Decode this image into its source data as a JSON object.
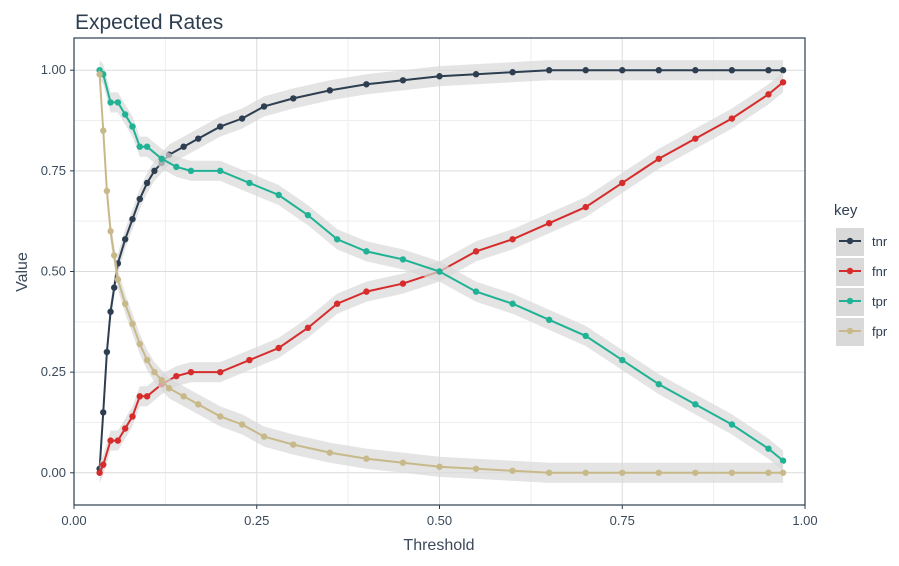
{
  "chart_data": {
    "type": "scatter",
    "title": "Expected Rates",
    "xlabel": "Threshold",
    "ylabel": "Value",
    "xlim": [
      0,
      1
    ],
    "ylim": [
      -0.08,
      1.08
    ],
    "x_ticks": [
      0.0,
      0.25,
      0.5,
      0.75,
      1.0
    ],
    "x_tick_labels": [
      "0.00",
      "0.25",
      "0.50",
      "0.75",
      "1.00"
    ],
    "y_ticks": [
      0.0,
      0.25,
      0.5,
      0.75,
      1.0
    ],
    "y_tick_labels": [
      "0.00",
      "0.25",
      "0.50",
      "0.75",
      "1.00"
    ],
    "grid": true,
    "smoothing_band": true,
    "legend": {
      "title": "key",
      "position": "right"
    },
    "series": [
      {
        "name": "tnr",
        "color": "#2d3e50",
        "x": [
          0.035,
          0.04,
          0.045,
          0.05,
          0.055,
          0.06,
          0.07,
          0.08,
          0.09,
          0.1,
          0.11,
          0.12,
          0.13,
          0.15,
          0.17,
          0.2,
          0.23,
          0.26,
          0.3,
          0.35,
          0.4,
          0.45,
          0.5,
          0.55,
          0.6,
          0.65,
          0.7,
          0.75,
          0.8,
          0.85,
          0.9,
          0.95,
          0.97
        ],
        "y": [
          0.01,
          0.15,
          0.3,
          0.4,
          0.46,
          0.52,
          0.58,
          0.63,
          0.68,
          0.72,
          0.75,
          0.77,
          0.79,
          0.81,
          0.83,
          0.86,
          0.88,
          0.91,
          0.93,
          0.95,
          0.965,
          0.975,
          0.985,
          0.99,
          0.995,
          1.0,
          1.0,
          1.0,
          1.0,
          1.0,
          1.0,
          1.0,
          1.0
        ]
      },
      {
        "name": "fnr",
        "color": "#d62c2c",
        "x": [
          0.035,
          0.04,
          0.05,
          0.06,
          0.07,
          0.08,
          0.09,
          0.1,
          0.12,
          0.14,
          0.16,
          0.2,
          0.24,
          0.28,
          0.32,
          0.36,
          0.4,
          0.45,
          0.5,
          0.55,
          0.6,
          0.65,
          0.7,
          0.75,
          0.8,
          0.85,
          0.9,
          0.95,
          0.97
        ],
        "y": [
          0.0,
          0.02,
          0.08,
          0.08,
          0.11,
          0.14,
          0.19,
          0.19,
          0.22,
          0.24,
          0.25,
          0.25,
          0.28,
          0.31,
          0.36,
          0.42,
          0.45,
          0.47,
          0.5,
          0.55,
          0.58,
          0.62,
          0.66,
          0.72,
          0.78,
          0.83,
          0.88,
          0.94,
          0.97
        ]
      },
      {
        "name": "tpr",
        "color": "#20b294",
        "x": [
          0.035,
          0.04,
          0.05,
          0.06,
          0.07,
          0.08,
          0.09,
          0.1,
          0.12,
          0.14,
          0.16,
          0.2,
          0.24,
          0.28,
          0.32,
          0.36,
          0.4,
          0.45,
          0.5,
          0.55,
          0.6,
          0.65,
          0.7,
          0.75,
          0.8,
          0.85,
          0.9,
          0.95,
          0.97
        ],
        "y": [
          1.0,
          0.99,
          0.92,
          0.92,
          0.89,
          0.86,
          0.81,
          0.81,
          0.78,
          0.76,
          0.75,
          0.75,
          0.72,
          0.69,
          0.64,
          0.58,
          0.55,
          0.53,
          0.5,
          0.45,
          0.42,
          0.38,
          0.34,
          0.28,
          0.22,
          0.17,
          0.12,
          0.06,
          0.03
        ]
      },
      {
        "name": "fpr",
        "color": "#c8b98a",
        "x": [
          0.035,
          0.04,
          0.045,
          0.05,
          0.055,
          0.06,
          0.07,
          0.08,
          0.09,
          0.1,
          0.11,
          0.12,
          0.13,
          0.15,
          0.17,
          0.2,
          0.23,
          0.26,
          0.3,
          0.35,
          0.4,
          0.45,
          0.5,
          0.55,
          0.6,
          0.65,
          0.7,
          0.75,
          0.8,
          0.85,
          0.9,
          0.95,
          0.97
        ],
        "y": [
          0.99,
          0.85,
          0.7,
          0.6,
          0.54,
          0.48,
          0.42,
          0.37,
          0.32,
          0.28,
          0.25,
          0.23,
          0.21,
          0.19,
          0.17,
          0.14,
          0.12,
          0.09,
          0.07,
          0.05,
          0.035,
          0.025,
          0.015,
          0.01,
          0.005,
          0.0,
          0.0,
          0.0,
          0.0,
          0.0,
          0.0,
          0.0,
          0.0
        ]
      }
    ]
  }
}
